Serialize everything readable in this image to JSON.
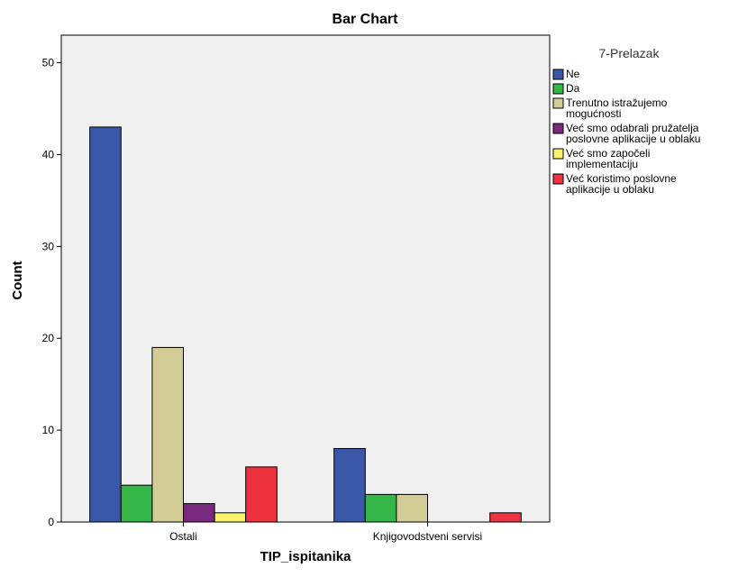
{
  "chart_data": {
    "type": "bar",
    "title": "Bar Chart",
    "xlabel": "TIP_ispitanika",
    "ylabel": "Count",
    "ylim": [
      0,
      53
    ],
    "yticks": [
      0,
      10,
      20,
      30,
      40,
      50
    ],
    "grid": false,
    "legend_position": "right",
    "legend_title": "7-Prelazak",
    "categories": [
      "Ostali",
      "Knjigovodstveni servisi"
    ],
    "series": [
      {
        "name": "Ne",
        "label_lines": [
          "Ne"
        ],
        "color": "#3b57a8",
        "values": [
          43,
          8
        ]
      },
      {
        "name": "Da",
        "label_lines": [
          "Da"
        ],
        "color": "#35b648",
        "values": [
          4,
          3
        ]
      },
      {
        "name": "Trenutno istražujemo mogućnosti",
        "label_lines": [
          "Trenutno istražujemo",
          "mogućnosti"
        ],
        "color": "#d2cc96",
        "values": [
          19,
          3
        ]
      },
      {
        "name": "Već smo odabrali pružatelja poslovne aplikacije u oblaku",
        "label_lines": [
          "Već smo odabrali pružatelja",
          "poslovne aplikacije u oblaku"
        ],
        "color": "#7a2a7e",
        "values": [
          2,
          0
        ]
      },
      {
        "name": "Već smo započeli implementaciju",
        "label_lines": [
          "Već smo započeli",
          "implementaciju"
        ],
        "color": "#f8f36a",
        "values": [
          1,
          0
        ]
      },
      {
        "name": "Već koristimo poslovne aplikacije u oblaku",
        "label_lines": [
          "Već koristimo poslovne",
          "aplikacije u oblaku"
        ],
        "color": "#ee3340",
        "values": [
          6,
          1
        ]
      }
    ],
    "plot_background": "#f0f0f0"
  }
}
